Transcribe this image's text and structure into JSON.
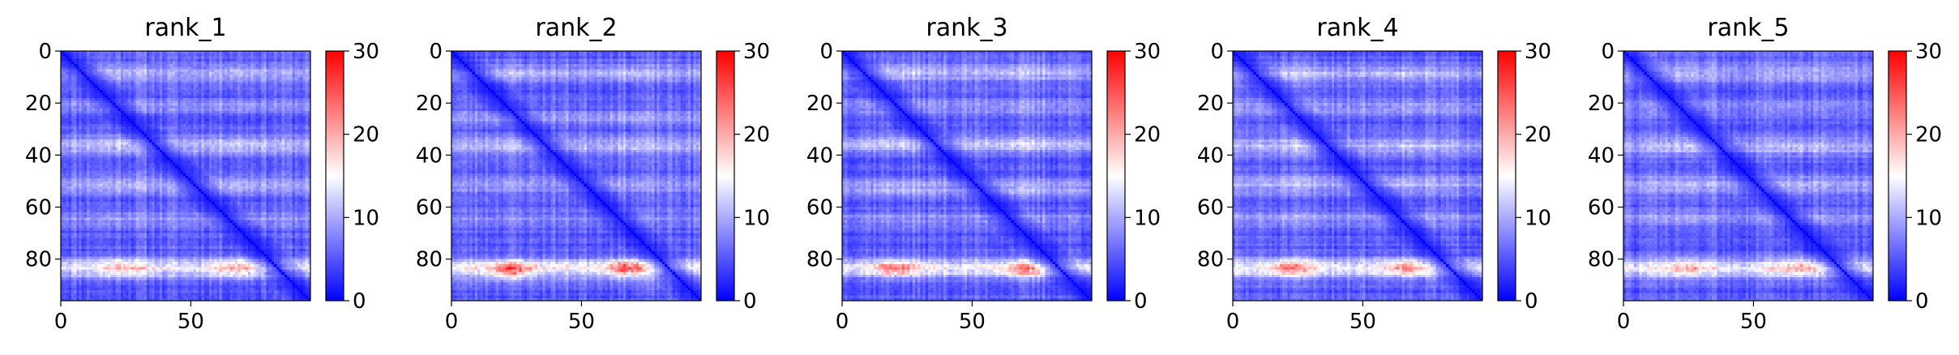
{
  "figure": {
    "title": "",
    "colormap": "bwr",
    "colors": {
      "low": "#0000ff",
      "mid": "#ffffff",
      "high": "#ff0000"
    }
  },
  "chart_data": [
    {
      "type": "heatmap",
      "title": "rank_1",
      "seed": 11,
      "xlim": [
        0,
        96
      ],
      "ylim": [
        96,
        0
      ],
      "x_ticks": [
        {
          "value": 0,
          "label": "0"
        },
        {
          "value": 50,
          "label": "50"
        }
      ],
      "y_ticks": [
        {
          "value": 0,
          "label": "0"
        },
        {
          "value": 20,
          "label": "20"
        },
        {
          "value": 40,
          "label": "40"
        },
        {
          "value": 60,
          "label": "60"
        },
        {
          "value": 80,
          "label": "80"
        }
      ],
      "colorbar": {
        "vmin": 0,
        "vmax": 30,
        "ticks": [
          {
            "value": 0,
            "label": "0"
          },
          {
            "value": 10,
            "label": "10"
          },
          {
            "value": 20,
            "label": "20"
          },
          {
            "value": 30,
            "label": "30"
          }
        ]
      },
      "row_bands": [
        {
          "center": 8,
          "width": 2.5,
          "amp": 5
        },
        {
          "center": 21,
          "width": 2,
          "amp": 3.5
        },
        {
          "center": 36,
          "width": 2.5,
          "amp": 6
        },
        {
          "center": 51,
          "width": 2.5,
          "amp": 4.5
        },
        {
          "center": 64,
          "width": 2,
          "amp": 3.5
        },
        {
          "center": 83,
          "width": 2.5,
          "amp": 10
        }
      ],
      "hotspots": [
        {
          "x": 24,
          "y": 83,
          "rx": 6,
          "ry": 2.5,
          "amp": 3
        },
        {
          "x": 66,
          "y": 83,
          "rx": 6,
          "ry": 2.5,
          "amp": 3
        }
      ],
      "col_modulation": [
        {
          "center": 24,
          "width": 8,
          "amp": 4
        },
        {
          "center": 67,
          "width": 8,
          "amp": 4
        }
      ]
    },
    {
      "type": "heatmap",
      "title": "rank_2",
      "seed": 23,
      "xlim": [
        0,
        96
      ],
      "ylim": [
        96,
        0
      ],
      "x_ticks": [
        {
          "value": 0,
          "label": "0"
        },
        {
          "value": 50,
          "label": "50"
        }
      ],
      "y_ticks": [
        {
          "value": 0,
          "label": "0"
        },
        {
          "value": 20,
          "label": "20"
        },
        {
          "value": 40,
          "label": "40"
        },
        {
          "value": 60,
          "label": "60"
        },
        {
          "value": 80,
          "label": "80"
        }
      ],
      "colorbar": {
        "vmin": 0,
        "vmax": 30,
        "ticks": [
          {
            "value": 0,
            "label": "0"
          },
          {
            "value": 10,
            "label": "10"
          },
          {
            "value": 20,
            "label": "20"
          },
          {
            "value": 30,
            "label": "30"
          }
        ]
      },
      "row_bands": [
        {
          "center": 8,
          "width": 2.5,
          "amp": 5
        },
        {
          "center": 25,
          "width": 2,
          "amp": 4
        },
        {
          "center": 36,
          "width": 2.5,
          "amp": 5
        },
        {
          "center": 51,
          "width": 2.5,
          "amp": 4
        },
        {
          "center": 64,
          "width": 2,
          "amp": 3
        },
        {
          "center": 83,
          "width": 2.5,
          "amp": 11
        }
      ],
      "hotspots": [
        {
          "x": 22,
          "y": 84,
          "rx": 5,
          "ry": 2,
          "amp": 8
        },
        {
          "x": 67,
          "y": 83,
          "rx": 5,
          "ry": 2,
          "amp": 8
        }
      ],
      "col_modulation": [
        {
          "center": 22,
          "width": 8,
          "amp": 4
        },
        {
          "center": 67,
          "width": 8,
          "amp": 4
        }
      ]
    },
    {
      "type": "heatmap",
      "title": "rank_3",
      "seed": 37,
      "xlim": [
        0,
        96
      ],
      "ylim": [
        96,
        0
      ],
      "x_ticks": [
        {
          "value": 0,
          "label": "0"
        },
        {
          "value": 50,
          "label": "50"
        }
      ],
      "y_ticks": [
        {
          "value": 0,
          "label": "0"
        },
        {
          "value": 20,
          "label": "20"
        },
        {
          "value": 40,
          "label": "40"
        },
        {
          "value": 60,
          "label": "60"
        },
        {
          "value": 80,
          "label": "80"
        }
      ],
      "colorbar": {
        "vmin": 0,
        "vmax": 30,
        "ticks": [
          {
            "value": 0,
            "label": "0"
          },
          {
            "value": 10,
            "label": "10"
          },
          {
            "value": 20,
            "label": "20"
          },
          {
            "value": 30,
            "label": "30"
          }
        ]
      },
      "row_bands": [
        {
          "center": 8,
          "width": 2.5,
          "amp": 5
        },
        {
          "center": 21,
          "width": 2,
          "amp": 3.5
        },
        {
          "center": 35,
          "width": 2.5,
          "amp": 6
        },
        {
          "center": 52,
          "width": 2.5,
          "amp": 4.5
        },
        {
          "center": 64,
          "width": 2,
          "amp": 3
        },
        {
          "center": 83,
          "width": 2.5,
          "amp": 10
        }
      ],
      "hotspots": [
        {
          "x": 20,
          "y": 83,
          "rx": 5,
          "ry": 2,
          "amp": 6
        },
        {
          "x": 70,
          "y": 84,
          "rx": 5,
          "ry": 2,
          "amp": 6
        }
      ],
      "col_modulation": [
        {
          "center": 22,
          "width": 8,
          "amp": 4
        },
        {
          "center": 68,
          "width": 8,
          "amp": 4
        }
      ]
    },
    {
      "type": "heatmap",
      "title": "rank_4",
      "seed": 51,
      "xlim": [
        0,
        96
      ],
      "ylim": [
        96,
        0
      ],
      "x_ticks": [
        {
          "value": 0,
          "label": "0"
        },
        {
          "value": 50,
          "label": "50"
        }
      ],
      "y_ticks": [
        {
          "value": 0,
          "label": "0"
        },
        {
          "value": 20,
          "label": "20"
        },
        {
          "value": 40,
          "label": "40"
        },
        {
          "value": 60,
          "label": "60"
        },
        {
          "value": 80,
          "label": "80"
        }
      ],
      "colorbar": {
        "vmin": 0,
        "vmax": 30,
        "ticks": [
          {
            "value": 0,
            "label": "0"
          },
          {
            "value": 10,
            "label": "10"
          },
          {
            "value": 20,
            "label": "20"
          },
          {
            "value": 30,
            "label": "30"
          }
        ]
      },
      "row_bands": [
        {
          "center": 8,
          "width": 2.5,
          "amp": 5
        },
        {
          "center": 21,
          "width": 2,
          "amp": 4
        },
        {
          "center": 36,
          "width": 2.5,
          "amp": 5.5
        },
        {
          "center": 51,
          "width": 2.5,
          "amp": 4.5
        },
        {
          "center": 64,
          "width": 2,
          "amp": 3.5
        },
        {
          "center": 83,
          "width": 2.5,
          "amp": 10
        }
      ],
      "hotspots": [
        {
          "x": 22,
          "y": 83,
          "rx": 5,
          "ry": 2,
          "amp": 6
        },
        {
          "x": 66,
          "y": 83,
          "rx": 5,
          "ry": 2,
          "amp": 5
        }
      ],
      "col_modulation": [
        {
          "center": 23,
          "width": 8,
          "amp": 4
        },
        {
          "center": 66,
          "width": 8,
          "amp": 4
        }
      ]
    },
    {
      "type": "heatmap",
      "title": "rank_5",
      "seed": 73,
      "xlim": [
        0,
        96
      ],
      "ylim": [
        96,
        0
      ],
      "x_ticks": [
        {
          "value": 0,
          "label": "0"
        },
        {
          "value": 50,
          "label": "50"
        }
      ],
      "y_ticks": [
        {
          "value": 0,
          "label": "0"
        },
        {
          "value": 20,
          "label": "20"
        },
        {
          "value": 40,
          "label": "40"
        },
        {
          "value": 60,
          "label": "60"
        },
        {
          "value": 80,
          "label": "80"
        }
      ],
      "colorbar": {
        "vmin": 0,
        "vmax": 30,
        "ticks": [
          {
            "value": 0,
            "label": "0"
          },
          {
            "value": 10,
            "label": "10"
          },
          {
            "value": 20,
            "label": "20"
          },
          {
            "value": 30,
            "label": "30"
          }
        ]
      },
      "row_bands": [
        {
          "center": 8,
          "width": 2.5,
          "amp": 5
        },
        {
          "center": 21,
          "width": 2,
          "amp": 3.5
        },
        {
          "center": 36,
          "width": 2.5,
          "amp": 5.5
        },
        {
          "center": 51,
          "width": 2.5,
          "amp": 4.5
        },
        {
          "center": 64,
          "width": 2,
          "amp": 3.5
        },
        {
          "center": 83,
          "width": 2.5,
          "amp": 10
        }
      ],
      "hotspots": [
        {
          "x": 24,
          "y": 83,
          "rx": 6,
          "ry": 2.5,
          "amp": 3
        },
        {
          "x": 66,
          "y": 83,
          "rx": 6,
          "ry": 2.5,
          "amp": 3
        }
      ],
      "col_modulation": [
        {
          "center": 24,
          "width": 8,
          "amp": 4
        },
        {
          "center": 67,
          "width": 8,
          "amp": 4
        }
      ]
    }
  ]
}
